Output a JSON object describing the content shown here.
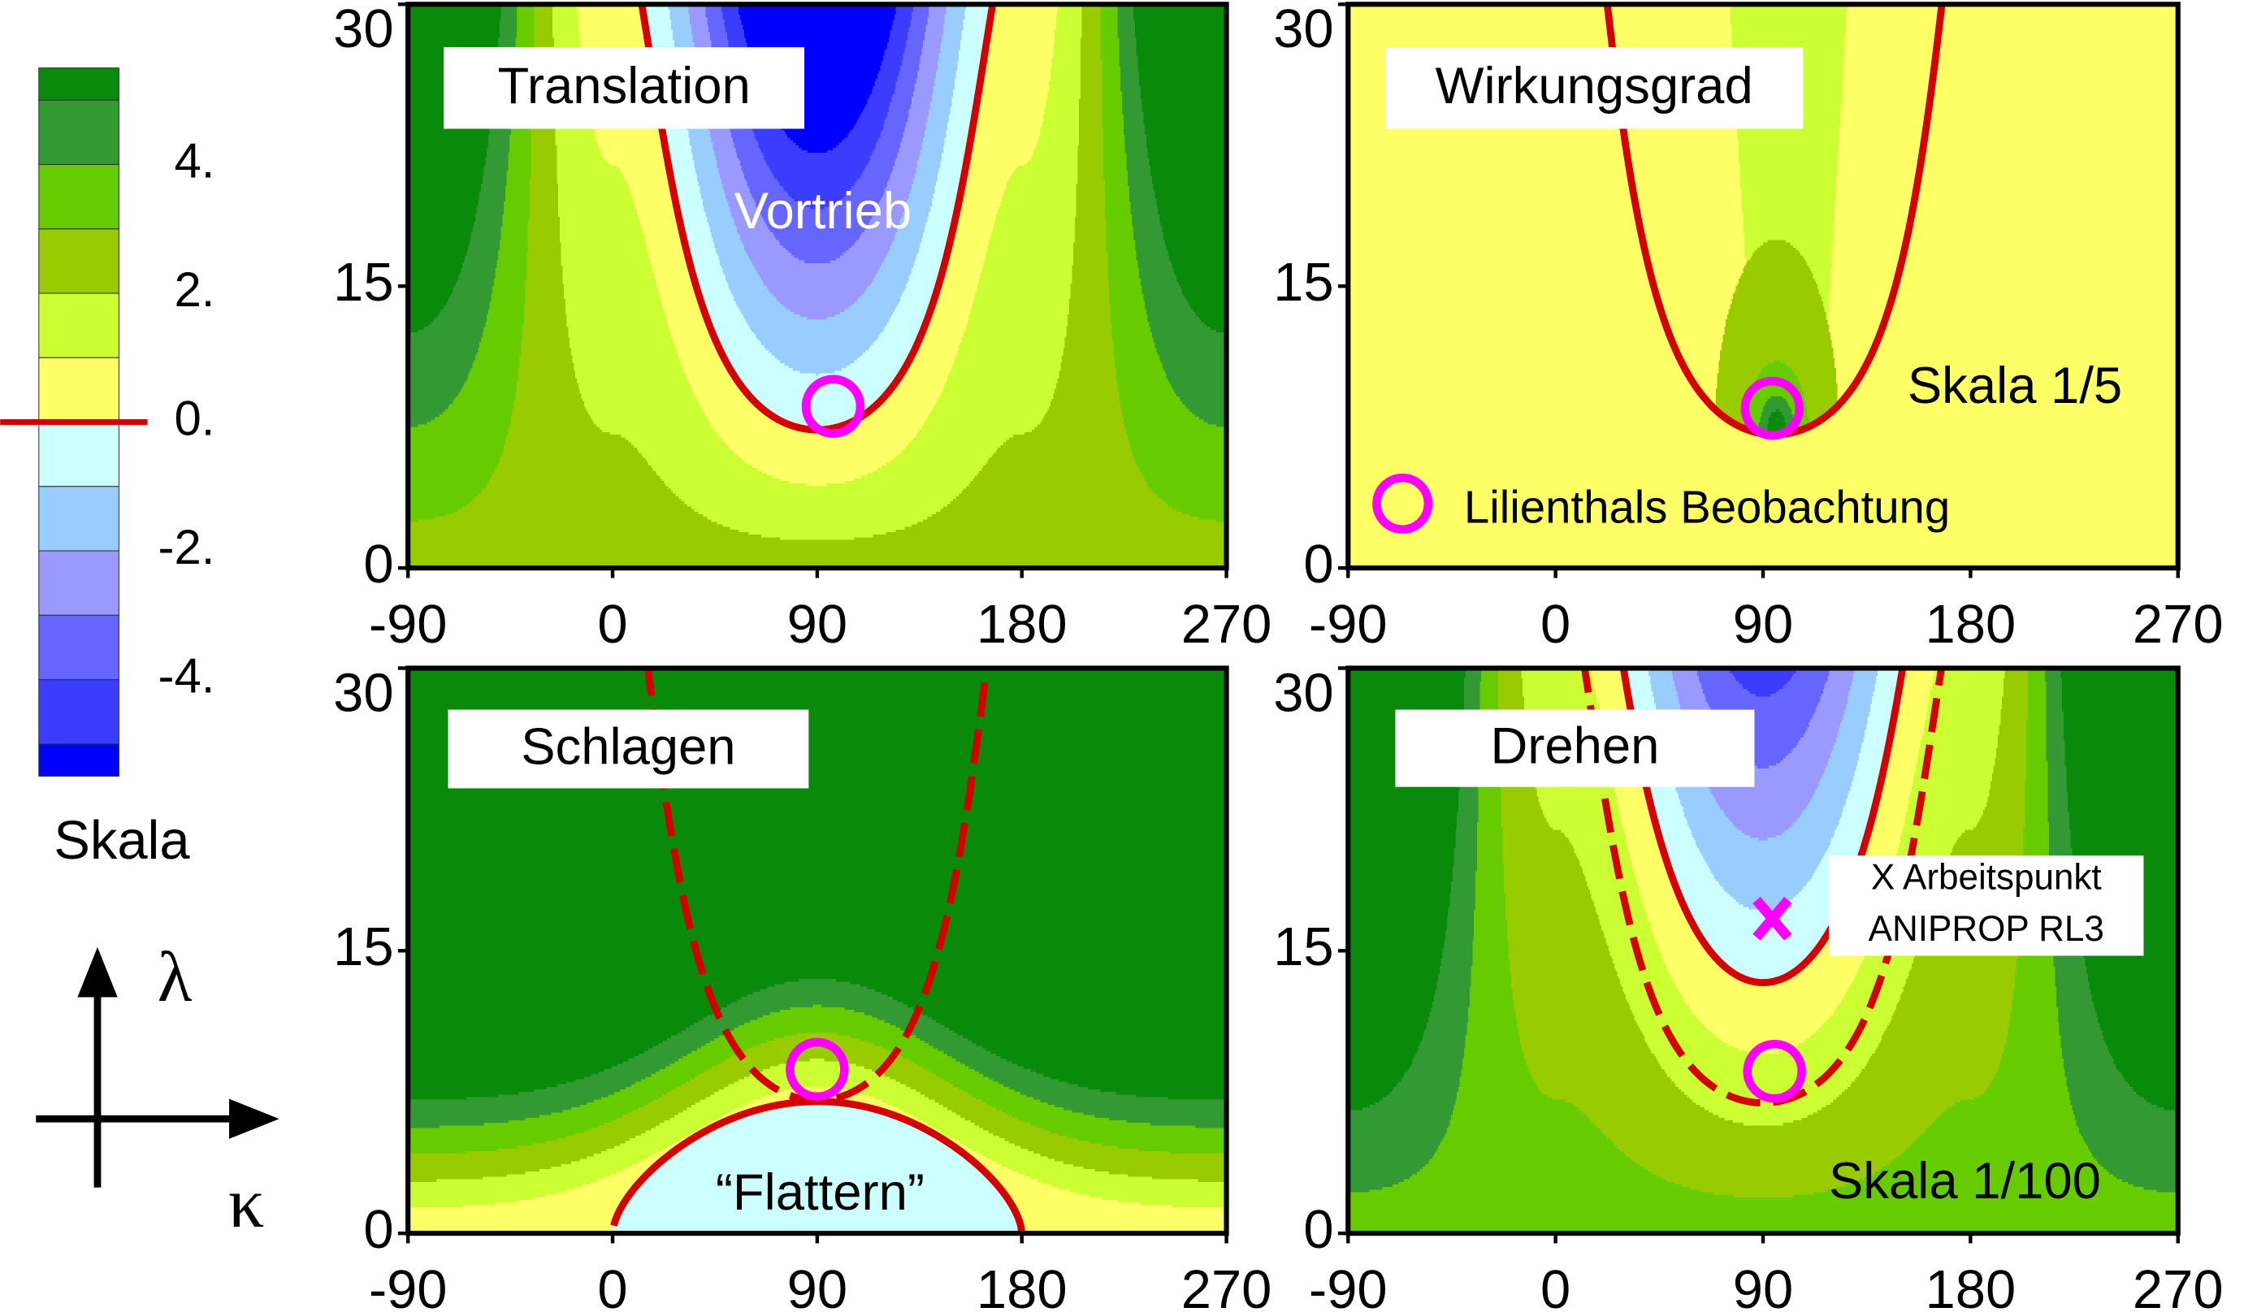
{
  "colorbar": {
    "label": "Skala",
    "lim": [
      -5.5,
      5.5
    ],
    "levels": [
      -5,
      -4,
      -3,
      -2,
      -1,
      0,
      1,
      2,
      3,
      4,
      5
    ],
    "colors": [
      "#0a8a0a",
      "#339933",
      "#66cc00",
      "#99cc00",
      "#ccff33",
      "#ffff66",
      "#ccffff",
      "#99ccff",
      "#9999ff",
      "#6666ff",
      "#3c3cff",
      "#0000ff"
    ],
    "ticks": [
      {
        "value": 4,
        "label": "4."
      },
      {
        "value": 2,
        "label": "2."
      },
      {
        "value": 0,
        "label": "0."
      },
      {
        "value": -2,
        "label": "-2."
      },
      {
        "value": -4,
        "label": "-4."
      }
    ],
    "contour_line": {
      "value": 0,
      "color": "#d40000"
    }
  },
  "axes_glyph": {
    "y_label": "λ",
    "x_label": "κ"
  },
  "chart_data": [
    {
      "type": "contour",
      "title": "Translation",
      "xlim": [
        -90,
        270
      ],
      "ylim": [
        0,
        30
      ],
      "xticks": [
        -90,
        0,
        90,
        180,
        270
      ],
      "yticks": [
        0,
        15,
        30
      ],
      "annotations": [
        "Vortrieb"
      ],
      "points": [
        {
          "x": 97,
          "y": 8.6,
          "marker": "circle",
          "color": "#ff00ff"
        }
      ]
    },
    {
      "type": "contour",
      "title": "Wirkungsgrad",
      "xlim": [
        -90,
        270
      ],
      "ylim": [
        0,
        30
      ],
      "xticks": [
        -90,
        0,
        90,
        180,
        270
      ],
      "yticks": [
        0,
        15,
        30
      ],
      "annotations": [
        "Skala 1/5"
      ],
      "legend": {
        "label": "Lilienthals Beobachtung",
        "marker": "circle",
        "color": "#ff00ff"
      },
      "points": [
        {
          "x": 94,
          "y": 8.5,
          "marker": "circle",
          "color": "#ff00ff"
        }
      ]
    },
    {
      "type": "contour",
      "title": "Schlagen",
      "xlim": [
        -90,
        270
      ],
      "ylim": [
        0,
        30
      ],
      "xticks": [
        -90,
        0,
        90,
        180,
        270
      ],
      "yticks": [
        0,
        15,
        30
      ],
      "annotations": [
        "“Flattern”"
      ],
      "points": [
        {
          "x": 90,
          "y": 8.7,
          "marker": "circle",
          "color": "#ff00ff"
        }
      ]
    },
    {
      "type": "contour",
      "title": "Drehen",
      "xlim": [
        -90,
        270
      ],
      "ylim": [
        0,
        30
      ],
      "xticks": [
        -90,
        0,
        90,
        180,
        270
      ],
      "yticks": [
        0,
        15,
        30
      ],
      "annotations": [
        "X Arbeitspunkt",
        "ANIPROP RL3",
        "Skala 1/100"
      ],
      "points": [
        {
          "x": 95,
          "y": 8.6,
          "marker": "circle",
          "color": "#ff00ff"
        },
        {
          "x": 94,
          "y": 16.7,
          "marker": "x",
          "color": "#ff00ff"
        }
      ]
    }
  ]
}
